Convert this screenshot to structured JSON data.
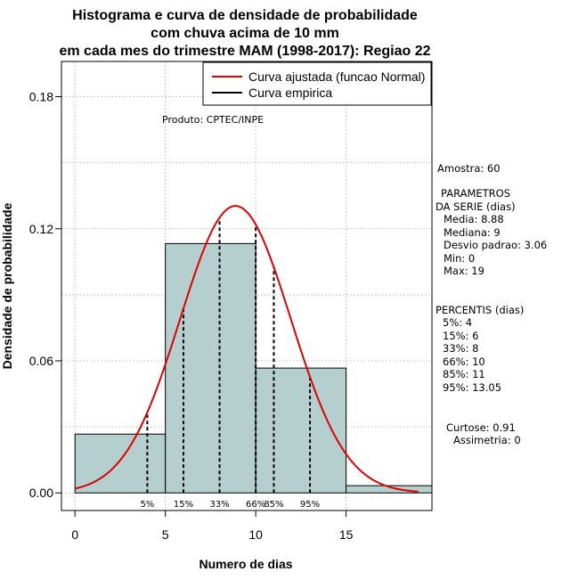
{
  "chart_data": {
    "type": "histogram",
    "title": [
      "Histograma e curva de densidade de probabilidade",
      "com chuva acima de 10 mm",
      "em cada mes do trimestre MAM (1998-2017): Regiao 22"
    ],
    "xlabel": "Numero de dias",
    "ylabel": "Densidade de probabilidade",
    "xlim": [
      -0.75,
      19.75
    ],
    "ylim": [
      -0.008,
      0.196
    ],
    "x_ticks": [
      0,
      5,
      10,
      15
    ],
    "x_tick_labels": [
      "0",
      "5",
      "10",
      "15"
    ],
    "y_ticks": [
      0.0,
      0.06,
      0.12,
      0.18
    ],
    "y_tick_labels": [
      "0.00",
      "0.06",
      "0.12",
      "0.18"
    ],
    "grid": true,
    "bars": [
      {
        "x0": 0,
        "x1": 5,
        "density": 0.0267
      },
      {
        "x0": 5,
        "x1": 10,
        "density": 0.1133
      },
      {
        "x0": 10,
        "x1": 15,
        "density": 0.0567
      },
      {
        "x0": 15,
        "x1": 20,
        "density": 0.0033
      }
    ],
    "bar_color": "#b5cece",
    "normal_curve": {
      "mean": 8.88,
      "sd": 3.06,
      "x_from": 0,
      "x_to": 19,
      "color": "#e00000"
    },
    "percentiles": [
      {
        "label": "5%",
        "x": 4
      },
      {
        "label": "15%",
        "x": 6
      },
      {
        "label": "33%",
        "x": 8
      },
      {
        "label": "66%",
        "x": 10
      },
      {
        "label": "85%",
        "x": 11
      },
      {
        "label": "95%",
        "x": 13
      }
    ],
    "legend": {
      "position": "top-right",
      "entries": [
        {
          "label": "Curva ajustada (funcao Normal)",
          "color": "#e00000"
        },
        {
          "label": "Curva empirica",
          "color": "#000000"
        }
      ]
    },
    "annotation": "Produto: CPTEC/INPE"
  },
  "side_panel": {
    "amostra": "Amostra: 60",
    "param_lines": [
      "PARAMETROS",
      "DA SERIE (dias)",
      "Media: 8.88",
      "Mediana: 9",
      "Desvio padrao: 3.06",
      "Min: 0",
      "Max: 19"
    ],
    "pct_lines": [
      "PERCENTIS (dias)",
      "5%: 4",
      "15%: 6",
      "33%: 8",
      "66%: 10",
      "85%: 11",
      "95%: 13.05"
    ],
    "shape_lines": [
      "Curtose: 0.91",
      "Assimetria: 0"
    ]
  }
}
